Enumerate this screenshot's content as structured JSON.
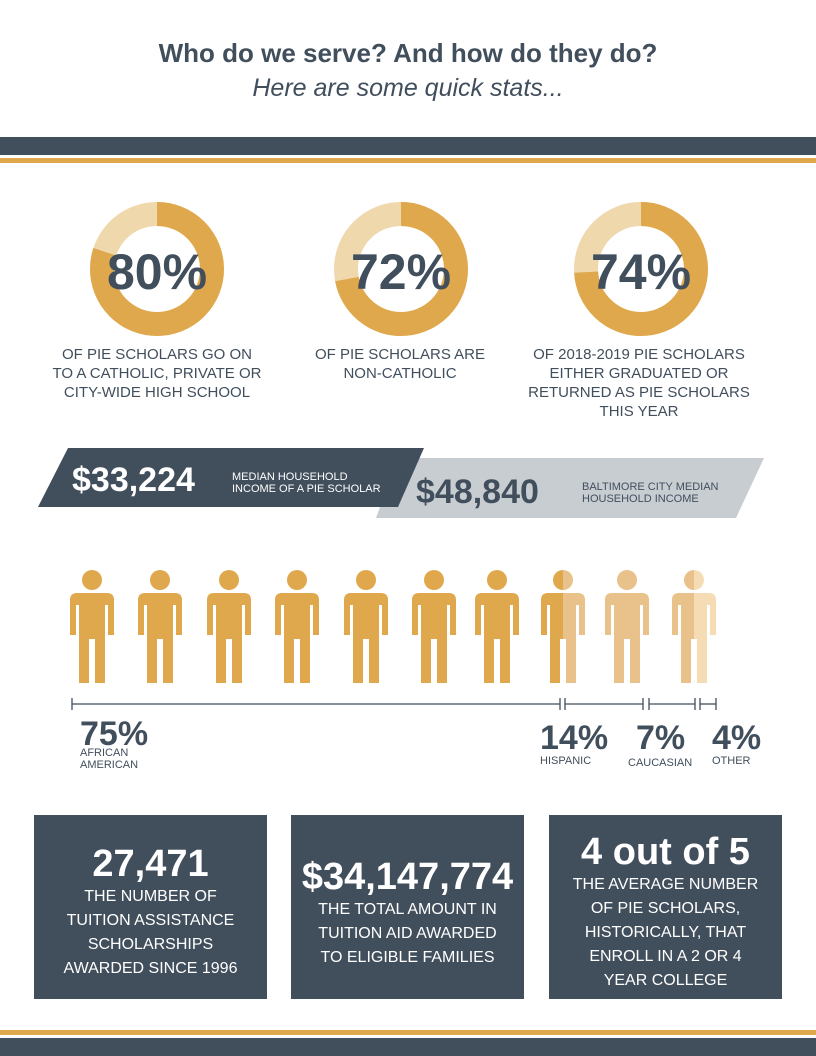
{
  "header": {
    "title": "Who do we serve? And how do they do?",
    "subtitle": "Here are some quick stats..."
  },
  "donuts": [
    {
      "value": "80%",
      "fraction": 0.8,
      "label_lines": [
        "OF PIE SCHOLARS GO ON",
        "TO A CATHOLIC, PRIVATE OR",
        "CITY-WIDE HIGH SCHOOL"
      ]
    },
    {
      "value": "72%",
      "fraction": 0.72,
      "label_lines": [
        "OF PIE SCHOLARS ARE",
        "NON-CATHOLIC"
      ]
    },
    {
      "value": "74%",
      "fraction": 0.74,
      "label_lines": [
        "OF 2018-2019 PIE SCHOLARS",
        "EITHER GRADUATED OR",
        "RETURNED AS  PIE SCHOLARS",
        "THIS YEAR"
      ]
    }
  ],
  "income": {
    "pie": {
      "value": "$33,224",
      "label_lines": [
        "MEDIAN HOUSEHOLD",
        "INCOME OF A PIE SCHOLAR"
      ]
    },
    "city": {
      "value": "$48,840",
      "label_lines": [
        "BALTIMORE CITY MEDIAN",
        "HOUSEHOLD INCOME"
      ]
    }
  },
  "demographics": [
    {
      "value": "75%",
      "label_lines": [
        "AFRICAN",
        "AMERICAN"
      ]
    },
    {
      "value": "14%",
      "label_lines": [
        "HISPANIC"
      ]
    },
    {
      "value": "7%",
      "label_lines": [
        "CAUCASIAN"
      ]
    },
    {
      "value": "4%",
      "label_lines": [
        "OTHER"
      ]
    }
  ],
  "stats": [
    {
      "value": "27,471",
      "text_lines": [
        "THE NUMBER OF",
        "TUITION ASSISTANCE",
        "SCHOLARSHIPS",
        "AWARDED SINCE 1996"
      ]
    },
    {
      "value": "$34,147,774",
      "text_lines": [
        "THE TOTAL AMOUNT IN",
        "TUITION AID AWARDED",
        "TO ELIGIBLE FAMILIES"
      ]
    },
    {
      "value": "4 out of 5",
      "text_lines": [
        "THE AVERAGE NUMBER",
        "OF PIE SCHOLARS,",
        "HISTORICALLY, THAT",
        "ENROLL IN A 2 OR 4",
        "YEAR COLLEGE"
      ]
    }
  ],
  "colors": {
    "navy": "#414e5c",
    "gold": "#e0a84c",
    "gold_light": "#f0d8ad",
    "gray": "#c8cdd2",
    "person_light1": "#e8c28a",
    "person_light2": "#f5dcb5"
  }
}
